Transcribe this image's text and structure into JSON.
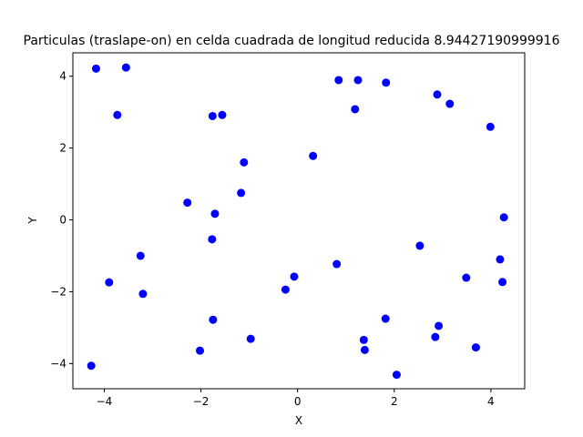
{
  "chart_data": {
    "type": "scatter",
    "title": "Particulas (traslape-on) en celda cuadrada de longitud reducida 8.94427190999916",
    "xlabel": "X",
    "ylabel": "Y",
    "xlim": [
      -4.65,
      4.7
    ],
    "ylim": [
      -4.7,
      4.65
    ],
    "xticks": [
      -4,
      -2,
      0,
      2,
      4
    ],
    "yticks": [
      -4,
      -2,
      0,
      2,
      4
    ],
    "xtick_labels": [
      "−4",
      "−2",
      "0",
      "2",
      "4"
    ],
    "ytick_labels": [
      "−4",
      "−2",
      "0",
      "2",
      "4"
    ],
    "grid": false,
    "marker_color": "#0000ff",
    "points": [
      {
        "x": -4.17,
        "y": 4.21
      },
      {
        "x": -3.55,
        "y": 4.24
      },
      {
        "x": -3.73,
        "y": 2.92
      },
      {
        "x": -1.76,
        "y": 2.89
      },
      {
        "x": -1.56,
        "y": 2.92
      },
      {
        "x": 0.85,
        "y": 3.89
      },
      {
        "x": 1.25,
        "y": 3.89
      },
      {
        "x": 1.83,
        "y": 3.82
      },
      {
        "x": 1.19,
        "y": 3.08
      },
      {
        "x": 2.89,
        "y": 3.49
      },
      {
        "x": 3.15,
        "y": 3.23
      },
      {
        "x": 3.99,
        "y": 2.59
      },
      {
        "x": 0.32,
        "y": 1.78
      },
      {
        "x": -1.11,
        "y": 1.6
      },
      {
        "x": -1.17,
        "y": 0.75
      },
      {
        "x": -2.28,
        "y": 0.48
      },
      {
        "x": -1.71,
        "y": 0.17
      },
      {
        "x": -1.77,
        "y": -0.54
      },
      {
        "x": 4.27,
        "y": 0.07
      },
      {
        "x": 2.53,
        "y": -0.72
      },
      {
        "x": 4.19,
        "y": -1.1
      },
      {
        "x": -3.25,
        "y": -1.0
      },
      {
        "x": -3.9,
        "y": -1.74
      },
      {
        "x": -3.2,
        "y": -2.06
      },
      {
        "x": 0.81,
        "y": -1.23
      },
      {
        "x": -0.07,
        "y": -1.58
      },
      {
        "x": -0.25,
        "y": -1.94
      },
      {
        "x": 3.49,
        "y": -1.61
      },
      {
        "x": 4.24,
        "y": -1.73
      },
      {
        "x": -1.75,
        "y": -2.78
      },
      {
        "x": 1.82,
        "y": -2.75
      },
      {
        "x": 2.92,
        "y": -2.95
      },
      {
        "x": -0.97,
        "y": -3.31
      },
      {
        "x": 1.37,
        "y": -3.34
      },
      {
        "x": 2.85,
        "y": -3.26
      },
      {
        "x": -2.02,
        "y": -3.64
      },
      {
        "x": 1.39,
        "y": -3.62
      },
      {
        "x": 3.69,
        "y": -3.55
      },
      {
        "x": -4.27,
        "y": -4.06
      },
      {
        "x": 2.05,
        "y": -4.31
      }
    ]
  }
}
